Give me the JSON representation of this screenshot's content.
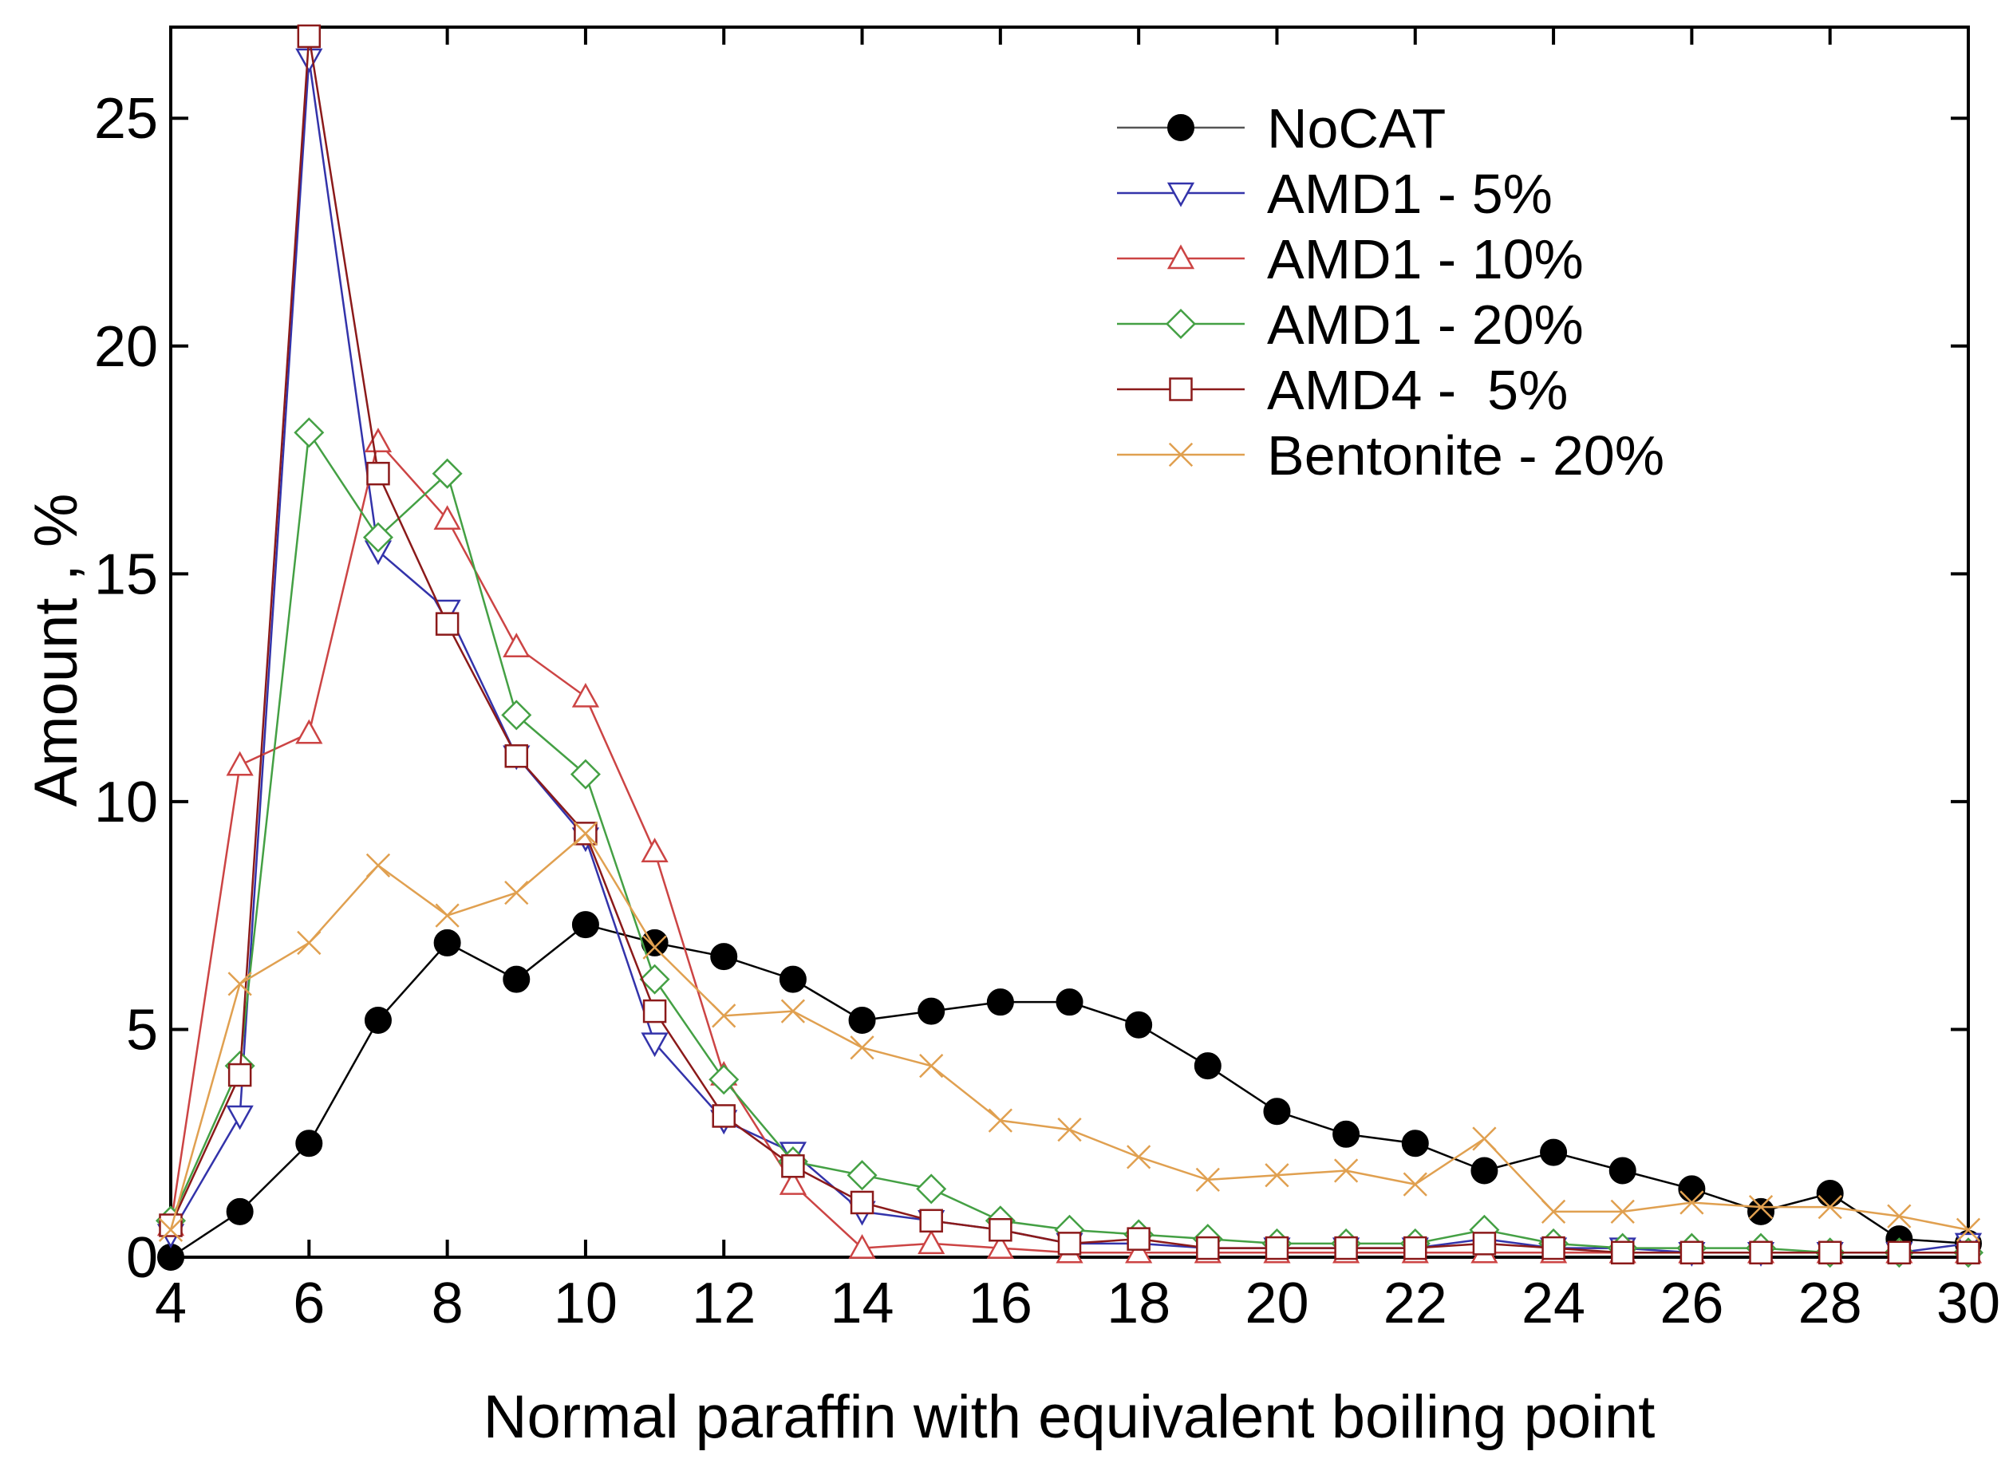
{
  "chart_data": {
    "type": "line",
    "title": "",
    "xlabel": "Normal paraffin with equivalent boiling point",
    "ylabel": "Amount , %",
    "xlim": [
      4,
      30
    ],
    "ylim": [
      0,
      27
    ],
    "x_ticks": [
      4,
      6,
      8,
      10,
      12,
      14,
      16,
      18,
      20,
      22,
      24,
      26,
      28,
      30
    ],
    "y_ticks": [
      0,
      5,
      10,
      15,
      20,
      25
    ],
    "grid": false,
    "legend_position": "top-right",
    "x": [
      4,
      5,
      6,
      7,
      8,
      9,
      10,
      11,
      12,
      13,
      14,
      15,
      16,
      17,
      18,
      19,
      20,
      21,
      22,
      23,
      24,
      25,
      26,
      27,
      28,
      29,
      30
    ],
    "series": [
      {
        "name": "NoCAT",
        "color": "#000000",
        "marker": "filled-circle",
        "values": [
          0.0,
          1.0,
          2.5,
          5.2,
          6.9,
          6.1,
          7.3,
          6.9,
          6.6,
          6.1,
          5.2,
          5.4,
          5.6,
          5.6,
          5.1,
          4.2,
          3.2,
          2.7,
          2.5,
          1.9,
          2.3,
          1.9,
          1.5,
          1.0,
          1.4,
          0.4,
          0.3
        ]
      },
      {
        "name": "AMD1 - 5%",
        "color": "#3333aa",
        "marker": "triangle-down",
        "values": [
          0.5,
          3.1,
          26.3,
          15.5,
          14.2,
          11.0,
          9.2,
          4.7,
          3.0,
          2.3,
          1.0,
          0.8,
          0.6,
          0.3,
          0.3,
          0.2,
          0.2,
          0.2,
          0.2,
          0.4,
          0.2,
          0.2,
          0.1,
          0.1,
          0.1,
          0.1,
          0.3
        ]
      },
      {
        "name": "AMD1 - 10%",
        "color": "#cc4444",
        "marker": "triangle-up",
        "values": [
          0.7,
          10.8,
          11.5,
          17.9,
          16.2,
          13.4,
          12.3,
          8.9,
          4.0,
          1.6,
          0.2,
          0.3,
          0.2,
          0.1,
          0.1,
          0.1,
          0.1,
          0.1,
          0.1,
          0.1,
          0.1,
          0.1,
          0.1,
          0.1,
          0.1,
          0.1,
          0.1
        ]
      },
      {
        "name": "AMD1 - 20%",
        "color": "#44a044",
        "marker": "diamond",
        "values": [
          0.8,
          4.2,
          18.1,
          15.8,
          17.2,
          11.9,
          10.6,
          6.1,
          3.9,
          2.1,
          1.8,
          1.5,
          0.8,
          0.6,
          0.5,
          0.4,
          0.3,
          0.3,
          0.3,
          0.6,
          0.3,
          0.2,
          0.2,
          0.2,
          0.1,
          0.1,
          0.1
        ]
      },
      {
        "name": "AMD4 -  5%",
        "color": "#8b1a1a",
        "marker": "square",
        "values": [
          0.7,
          4.0,
          26.8,
          17.2,
          13.9,
          11.0,
          9.3,
          5.4,
          3.1,
          2.0,
          1.2,
          0.8,
          0.6,
          0.3,
          0.4,
          0.2,
          0.2,
          0.2,
          0.2,
          0.3,
          0.2,
          0.1,
          0.1,
          0.1,
          0.1,
          0.1,
          0.1
        ]
      },
      {
        "name": "Bentonite - 20%",
        "color": "#e0a050",
        "marker": "x",
        "values": [
          0.6,
          6.0,
          6.9,
          8.6,
          7.5,
          8.0,
          9.3,
          6.8,
          5.3,
          5.4,
          4.6,
          4.2,
          3.0,
          2.8,
          2.2,
          1.7,
          1.8,
          1.9,
          1.6,
          2.6,
          1.0,
          1.0,
          1.2,
          1.1,
          1.1,
          0.9,
          0.6
        ]
      }
    ]
  }
}
